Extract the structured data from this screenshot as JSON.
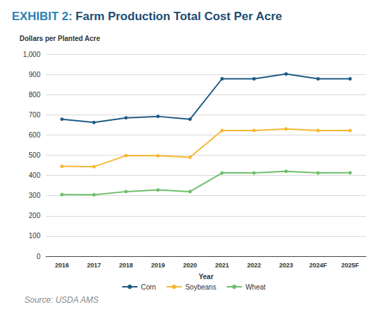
{
  "chart_data": {
    "type": "line",
    "title": "EXHIBIT 2: Farm Production Total Cost Per Acre",
    "y_label": "Dollars per Planted Acre",
    "x_label": "Year",
    "source": "Source: USDA AMS",
    "categories": [
      "2016",
      "2017",
      "2018",
      "2019",
      "2020",
      "2021",
      "2022",
      "2023",
      "2024F",
      "2025F"
    ],
    "series": [
      {
        "name": "Corn",
        "color": "#1d5a85",
        "marker": "circle",
        "values": [
          678,
          662,
          685,
          692,
          678,
          878,
          878,
          902,
          878,
          878
        ]
      },
      {
        "name": "Soybeans",
        "color": "#f5b731",
        "marker": "circle",
        "values": [
          445,
          443,
          498,
          497,
          490,
          622,
          622,
          630,
          622,
          622
        ]
      },
      {
        "name": "Wheat",
        "color": "#6cc06a",
        "marker": "circle",
        "values": [
          305,
          304,
          320,
          328,
          320,
          412,
          412,
          420,
          412,
          413
        ]
      }
    ],
    "ylim": [
      0,
      1000
    ],
    "yticks": [
      0,
      100,
      200,
      300,
      400,
      500,
      600,
      700,
      800,
      900,
      {
        "value": 1000,
        "label": "1,000"
      }
    ],
    "grid": true,
    "legend": "bottom"
  }
}
